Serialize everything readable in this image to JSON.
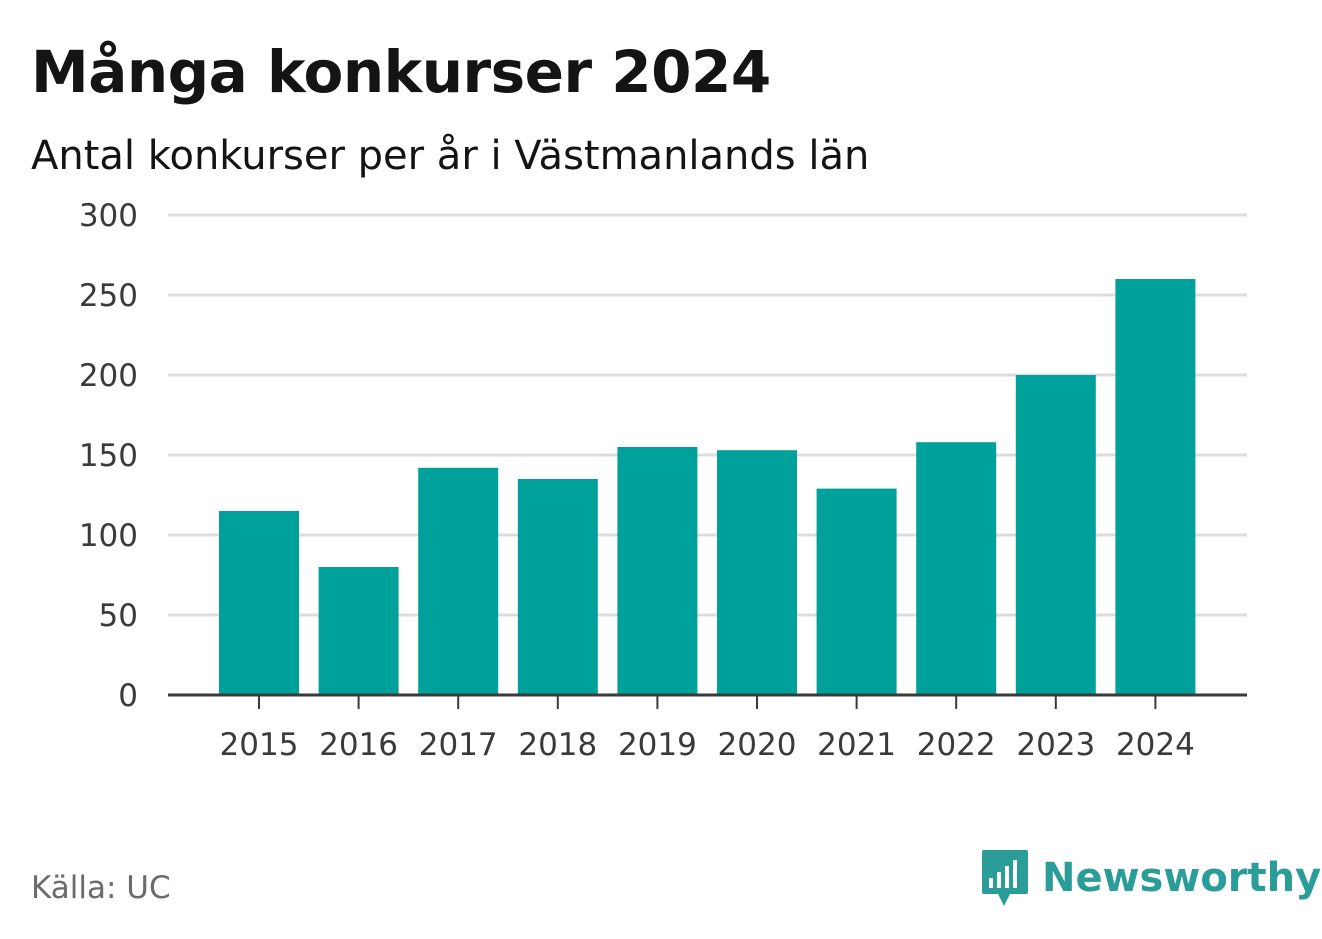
{
  "title": "Många konkurser 2024",
  "subtitle": "Antal konkurser per år i Västmanlands län",
  "source": "Källa: UC",
  "logo": {
    "text": "Newsworthy",
    "icon": "bar-chart-bubble-icon"
  },
  "colors": {
    "bar": "#00a19a",
    "grid": "#dcdcdc",
    "axis": "#3a3a3a",
    "brand": "#2a9d98"
  },
  "chart_data": {
    "type": "bar",
    "categories": [
      "2015",
      "2016",
      "2017",
      "2018",
      "2019",
      "2020",
      "2021",
      "2022",
      "2023",
      "2024"
    ],
    "values": [
      115,
      80,
      142,
      135,
      155,
      153,
      129,
      158,
      200,
      260
    ],
    "title": "Många konkurser 2024",
    "subtitle": "Antal konkurser per år i Västmanlands län",
    "xlabel": "",
    "ylabel": "",
    "ylim": [
      0,
      300
    ],
    "yticks": [
      "0",
      "50",
      "100",
      "150",
      "200",
      "250",
      "300"
    ],
    "grid": true,
    "legend": "none"
  }
}
